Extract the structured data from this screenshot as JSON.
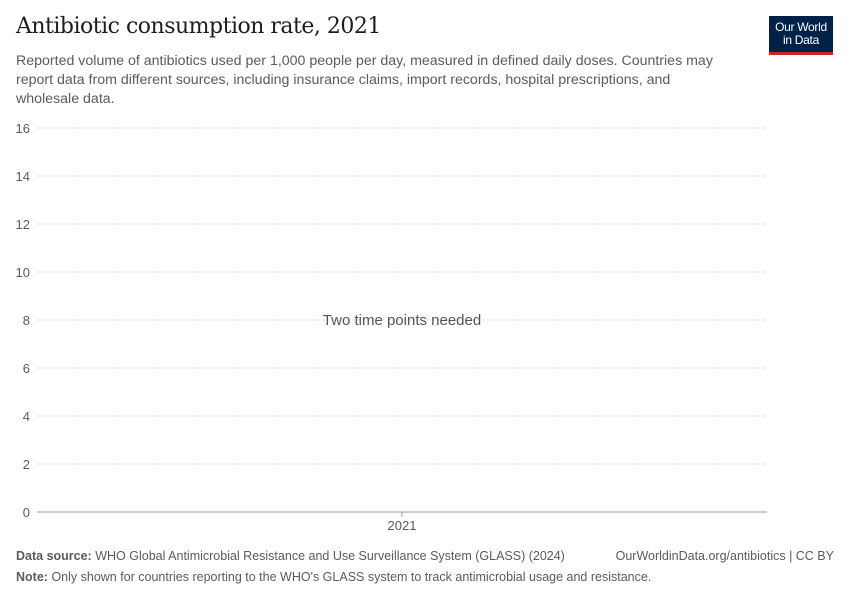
{
  "header": {
    "title": "Antibiotic consumption rate, 2021",
    "subtitle": "Reported volume of antibiotics used per 1,000 people per day, measured in defined daily doses. Countries may report data from different sources, including insurance claims, import records, hospital prescriptions, and wholesale data.",
    "logo": [
      "Our World",
      "in Data"
    ]
  },
  "chart_data": {
    "type": "line",
    "title": "Antibiotic consumption rate, 2021",
    "x": [],
    "series": [],
    "categories": [
      "2021"
    ],
    "ylim": [
      0,
      16
    ],
    "yticks": [
      0,
      2,
      4,
      6,
      8,
      10,
      12,
      14,
      16
    ],
    "ytick_labels": [
      "0",
      "2",
      "4",
      "6",
      "8",
      "10",
      "12",
      "14",
      "16"
    ],
    "xtick_labels": [
      "2021"
    ],
    "grid": true,
    "message": "Two time points needed",
    "colors": {
      "grid": "#dddddd",
      "axis": "#999999",
      "text": "#5b5b5b"
    }
  },
  "footer": {
    "source_label": "Data source:",
    "source": "WHO Global Antimicrobial Resistance and Use Surveillance System (GLASS) (2024)",
    "url": "OurWorldinData.org/antibiotics | CC BY",
    "note_label": "Note:",
    "note": "Only shown for countries reporting to the WHO's GLASS system to track antimicrobial usage and resistance."
  }
}
